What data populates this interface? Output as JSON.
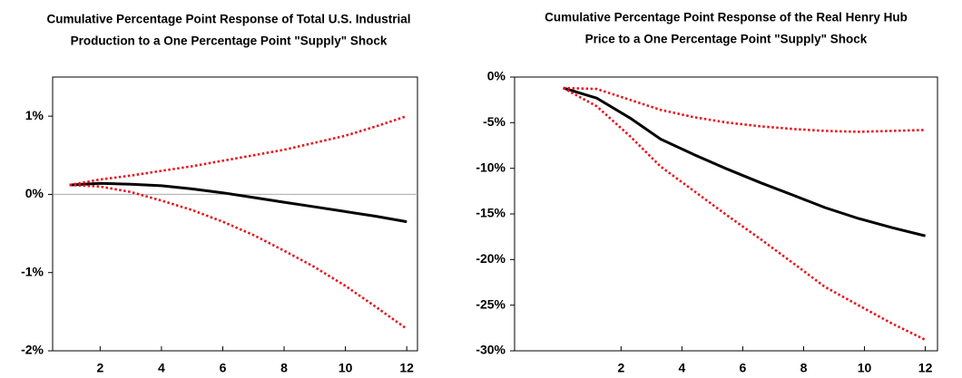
{
  "chart_data": [
    {
      "type": "line",
      "title": [
        "Cumulative Percentage Point Response of Total U.S. Industrial",
        "Production to a One Percentage Point \"Supply\" Shock"
      ],
      "x": [
        1,
        2,
        3,
        4,
        5,
        6,
        7,
        8,
        9,
        10,
        11,
        12
      ],
      "series": [
        {
          "color": "#000000",
          "style": "solid",
          "values": [
            0.12,
            0.14,
            0.13,
            0.11,
            0.07,
            0.02,
            -0.04,
            -0.1,
            -0.16,
            -0.22,
            -0.28,
            -0.35
          ]
        },
        {
          "color": "#e8141b",
          "style": "dotted",
          "values": [
            0.12,
            0.19,
            0.24,
            0.3,
            0.36,
            0.43,
            0.5,
            0.57,
            0.66,
            0.75,
            0.87,
            1.0
          ]
        },
        {
          "color": "#e8141b",
          "style": "dotted",
          "values": [
            0.12,
            0.1,
            0.03,
            -0.08,
            -0.2,
            -0.35,
            -0.52,
            -0.72,
            -0.93,
            -1.17,
            -1.44,
            -1.72
          ]
        }
      ],
      "xlim": [
        0.45,
        12.35
      ],
      "xticks": [
        2,
        4,
        6,
        8,
        10,
        12
      ],
      "ylim": [
        -2,
        1.5
      ],
      "yticks": [
        {
          "value": -2,
          "label": "-2%"
        },
        {
          "value": -1,
          "label": "-1%"
        },
        {
          "value": 0,
          "label": "0%"
        },
        {
          "value": 1,
          "label": "1%"
        }
      ],
      "zero_line": true
    },
    {
      "type": "line",
      "title": [
        "Cumulative Percentage Point Response of the Real Henry Hub",
        "Price to a One Percentage Point \"Supply\" Shock"
      ],
      "x": [
        0.1,
        1.2,
        2.3,
        3.3,
        4.4,
        5.5,
        6.6,
        7.7,
        8.7,
        9.8,
        10.9,
        12
      ],
      "series": [
        {
          "color": "#000000",
          "style": "solid",
          "values": [
            -1.2,
            -2.3,
            -4.5,
            -6.8,
            -8.5,
            -10.1,
            -11.6,
            -13.0,
            -14.3,
            -15.5,
            -16.5,
            -17.4
          ]
        },
        {
          "color": "#e8141b",
          "style": "dotted",
          "values": [
            -1.2,
            -1.3,
            -2.5,
            -3.6,
            -4.4,
            -5.0,
            -5.4,
            -5.7,
            -5.9,
            -6.0,
            -5.9,
            -5.8
          ]
        },
        {
          "color": "#e8141b",
          "style": "dotted",
          "values": [
            -1.2,
            -3.2,
            -6.5,
            -9.8,
            -12.5,
            -15.2,
            -17.8,
            -20.5,
            -23.0,
            -25.0,
            -27.0,
            -28.8
          ]
        }
      ],
      "xlim": [
        -1.5,
        12.4
      ],
      "xticks": [
        2,
        4,
        6,
        8,
        10,
        12
      ],
      "ylim": [
        -30,
        0
      ],
      "yticks": [
        {
          "value": -30,
          "label": "-30%"
        },
        {
          "value": -25,
          "label": "-25%"
        },
        {
          "value": -20,
          "label": "-20%"
        },
        {
          "value": -15,
          "label": "-15%"
        },
        {
          "value": -10,
          "label": "-10%"
        },
        {
          "value": -5,
          "label": "-5%"
        },
        {
          "value": 0,
          "label": "0%"
        }
      ],
      "zero_line": false
    }
  ]
}
